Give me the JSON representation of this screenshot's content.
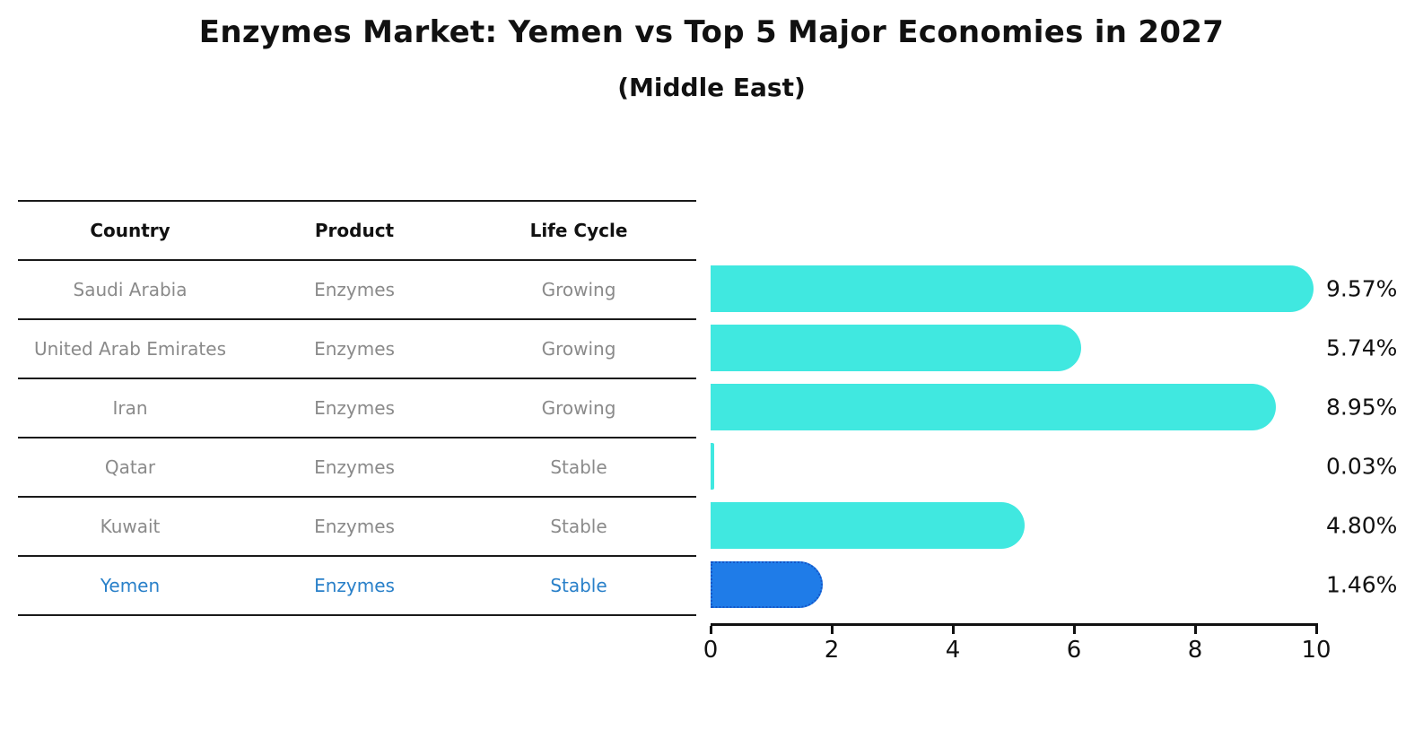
{
  "title": "Enzymes Market: Yemen vs Top 5 Major Economies in 2027",
  "subtitle": "(Middle East)",
  "table": {
    "headers": [
      "Country",
      "Product",
      "Life Cycle"
    ],
    "rows": [
      {
        "country": "Saudi Arabia",
        "product": "Enzymes",
        "life_cycle": "Growing",
        "highlighted": false
      },
      {
        "country": "United Arab Emirates",
        "product": "Enzymes",
        "life_cycle": "Growing",
        "highlighted": false
      },
      {
        "country": "Iran",
        "product": "Enzymes",
        "life_cycle": "Growing",
        "highlighted": false
      },
      {
        "country": "Qatar",
        "product": "Enzymes",
        "life_cycle": "Stable",
        "highlighted": false
      },
      {
        "country": "Kuwait",
        "product": "Enzymes",
        "life_cycle": "Stable",
        "highlighted": false
      },
      {
        "country": "Yemen",
        "product": "Enzymes",
        "life_cycle": "Stable",
        "highlighted": true
      }
    ]
  },
  "chart_data": {
    "type": "bar",
    "orientation": "horizontal",
    "categories": [
      "Saudi Arabia",
      "United Arab Emirates",
      "Iran",
      "Qatar",
      "Kuwait",
      "Yemen"
    ],
    "values": [
      9.57,
      5.74,
      8.95,
      0.03,
      4.8,
      1.46
    ],
    "value_labels": [
      "9.57%",
      "5.74%",
      "8.95%",
      "0.03%",
      "4.80%",
      "1.46%"
    ],
    "xticks": [
      0,
      2,
      4,
      6,
      8,
      10
    ],
    "xlim": [
      0,
      10
    ],
    "grid": false,
    "legend": "none",
    "highlight_category": "Yemen",
    "colors": {
      "bar": "#40e8e0",
      "highlight_bar": "#1f7ce8",
      "highlight_border": "#1456c8",
      "row_text": "#8a8a8a",
      "highlight_text": "#2980c9",
      "axis": "#111111"
    }
  }
}
